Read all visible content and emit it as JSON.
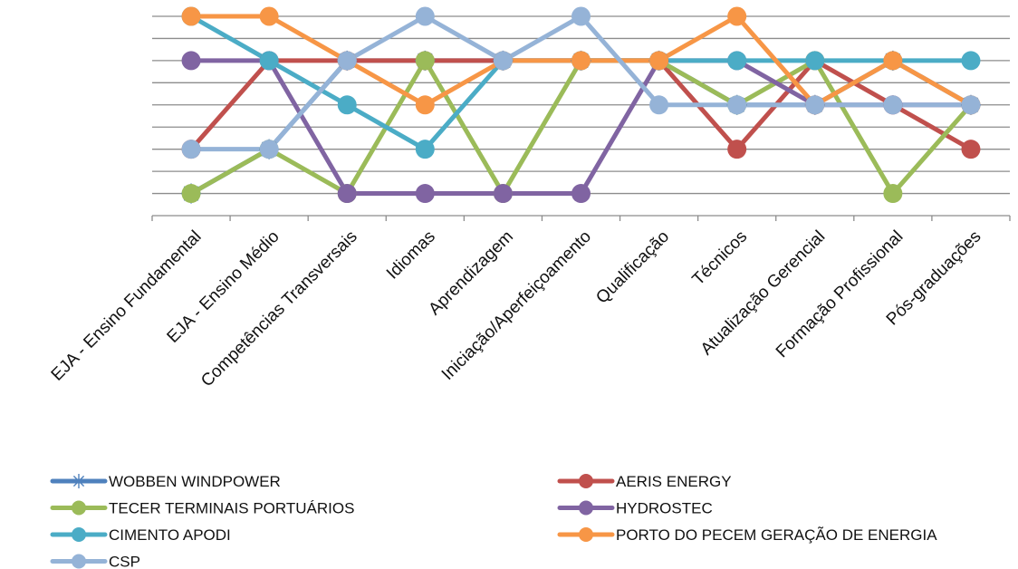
{
  "chart_data": {
    "type": "line",
    "categories": [
      "EJA - Ensino Fundamental",
      "EJA - Ensino Médio",
      "Competências Transversais",
      "Idiomas",
      "Aprendizagem",
      "Iniciação/Aperfeiçoamento",
      "Qualificação",
      "Técnicos",
      "Atualização Gerencial",
      "Formação Profissional",
      "Pós-graduações"
    ],
    "ylim": [
      0,
      8
    ],
    "y_grid_step": 1,
    "grid": true,
    "y_tick_labels_shown": false,
    "legend_position": "bottom",
    "series": [
      {
        "name": "WOBBEN WINDPOWER",
        "color": "#4F81BD",
        "marker": "star",
        "values": [
          0,
          2,
          6,
          6,
          6,
          6,
          6,
          4,
          4,
          6,
          4
        ]
      },
      {
        "name": "AERIS ENERGY",
        "color": "#C0504D",
        "marker": "circle",
        "values": [
          2,
          6,
          6,
          6,
          6,
          6,
          6,
          2,
          6,
          4,
          2
        ]
      },
      {
        "name": "TECER TERMINAIS PORTUÁRIOS",
        "color": "#9BBB59",
        "marker": "circle",
        "values": [
          0,
          2,
          0,
          6,
          0,
          6,
          6,
          4,
          6,
          0,
          4
        ]
      },
      {
        "name": "HYDROSTEC",
        "color": "#8064A2",
        "marker": "circle",
        "values": [
          6,
          6,
          0,
          0,
          0,
          0,
          6,
          6,
          4,
          4,
          4
        ]
      },
      {
        "name": "CIMENTO APODI",
        "color": "#4BACC6",
        "marker": "circle",
        "values": [
          8,
          6,
          4,
          2,
          6,
          6,
          6,
          6,
          6,
          6,
          6
        ]
      },
      {
        "name": "PORTO DO PECEM GERAÇÃO DE ENERGIA",
        "color": "#F79646",
        "marker": "circle",
        "values": [
          8,
          8,
          6,
          4,
          6,
          6,
          6,
          8,
          4,
          6,
          4
        ]
      },
      {
        "name": "CSP",
        "color": "#95B3D7",
        "marker": "circle",
        "values": [
          2,
          2,
          6,
          8,
          6,
          8,
          4,
          4,
          4,
          4,
          4
        ]
      }
    ]
  }
}
